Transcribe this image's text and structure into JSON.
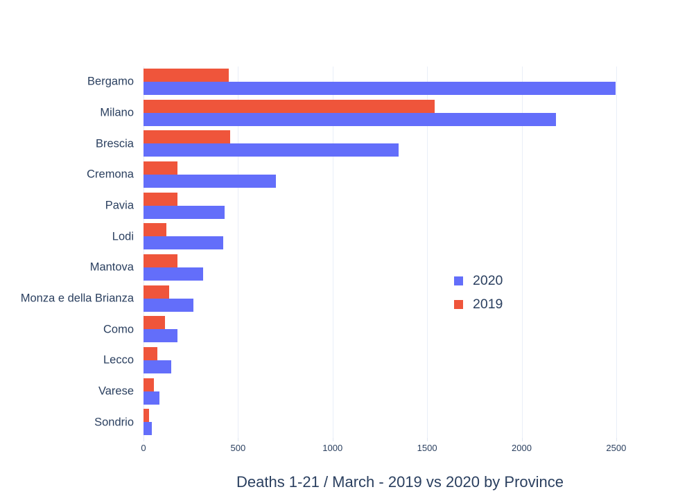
{
  "title": "Deaths 1-21 / March - 2019 vs 2020 by Province",
  "colors": {
    "series_2020": "#636EFA",
    "series_2019": "#EF553B",
    "text": "#2a3f5f",
    "gridline": "#e9eef8",
    "background": "#ffffff"
  },
  "chart_data": {
    "type": "bar",
    "orientation": "horizontal",
    "title": "Deaths 1-21 / March - 2019 vs 2020 by Province",
    "xlabel": "",
    "ylabel": "",
    "categories": [
      "Bergamo",
      "Milano",
      "Brescia",
      "Cremona",
      "Pavia",
      "Lodi",
      "Mantova",
      "Monza e della Brianza",
      "Como",
      "Lecco",
      "Varese",
      "Sondrio"
    ],
    "series": [
      {
        "name": "2020",
        "color": "#636EFA",
        "values": [
          2495,
          2180,
          1350,
          700,
          430,
          420,
          315,
          265,
          180,
          145,
          85,
          45
        ]
      },
      {
        "name": "2019",
        "color": "#EF553B",
        "values": [
          450,
          1540,
          460,
          180,
          180,
          120,
          180,
          135,
          115,
          75,
          55,
          30
        ]
      }
    ],
    "xticks": [
      0,
      500,
      1000,
      1500,
      2000,
      2500
    ],
    "xlim": [
      0,
      2768
    ],
    "grid": true,
    "legend_position": "inside-right",
    "legend_entries": [
      "2020",
      "2019"
    ]
  }
}
